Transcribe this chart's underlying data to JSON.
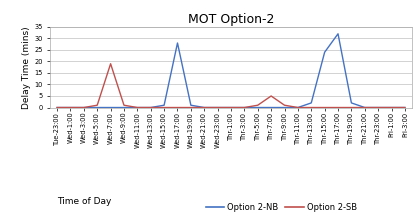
{
  "title": "MOT Option-2",
  "xlabel": "Time of Day",
  "ylabel": "Delay Time (mins)",
  "ylim": [
    0,
    35
  ],
  "yticks": [
    0,
    5,
    10,
    15,
    20,
    25,
    30,
    35
  ],
  "x_labels": [
    "Tue-23:00",
    "Wed-1:00",
    "Wed-3:00",
    "Wed-5:00",
    "Wed-7:00",
    "Wed-9:00",
    "Wed-11:00",
    "Wed-13:00",
    "Wed-15:00",
    "Wed-17:00",
    "Wed-19:00",
    "Wed-21:00",
    "Wed-23:00",
    "Thr-1:00",
    "Thr-3:00",
    "Thr-5:00",
    "Thr-7:00",
    "Thr-9:00",
    "Thr-11:00",
    "Thr-13:00",
    "Thr-15:00",
    "Thr-17:00",
    "Thr-19:00",
    "Thr-21:00",
    "Thr-23:00",
    "Fri-1:00",
    "Fri-3:00"
  ],
  "nb_values": [
    0,
    0,
    0,
    0,
    0,
    0,
    0,
    0,
    1,
    28,
    1,
    0,
    0,
    0,
    0,
    0,
    0,
    0,
    0,
    2,
    24,
    32,
    2,
    0,
    0,
    0,
    0
  ],
  "sb_values": [
    0,
    0,
    0,
    1,
    19,
    1,
    0,
    0,
    0,
    0,
    0,
    0,
    0,
    0,
    0,
    1,
    5,
    1,
    0,
    0,
    0,
    0,
    0,
    0,
    0,
    0,
    0
  ],
  "nb_color": "#4472C4",
  "sb_color": "#C0504D",
  "nb_label": "Option 2-NB",
  "sb_label": "Option 2-SB",
  "title_fontsize": 9,
  "label_fontsize": 6.5,
  "tick_fontsize": 4.8,
  "legend_fontsize": 6.0,
  "background_color": "#ffffff",
  "grid_color": "#c0c0c0"
}
